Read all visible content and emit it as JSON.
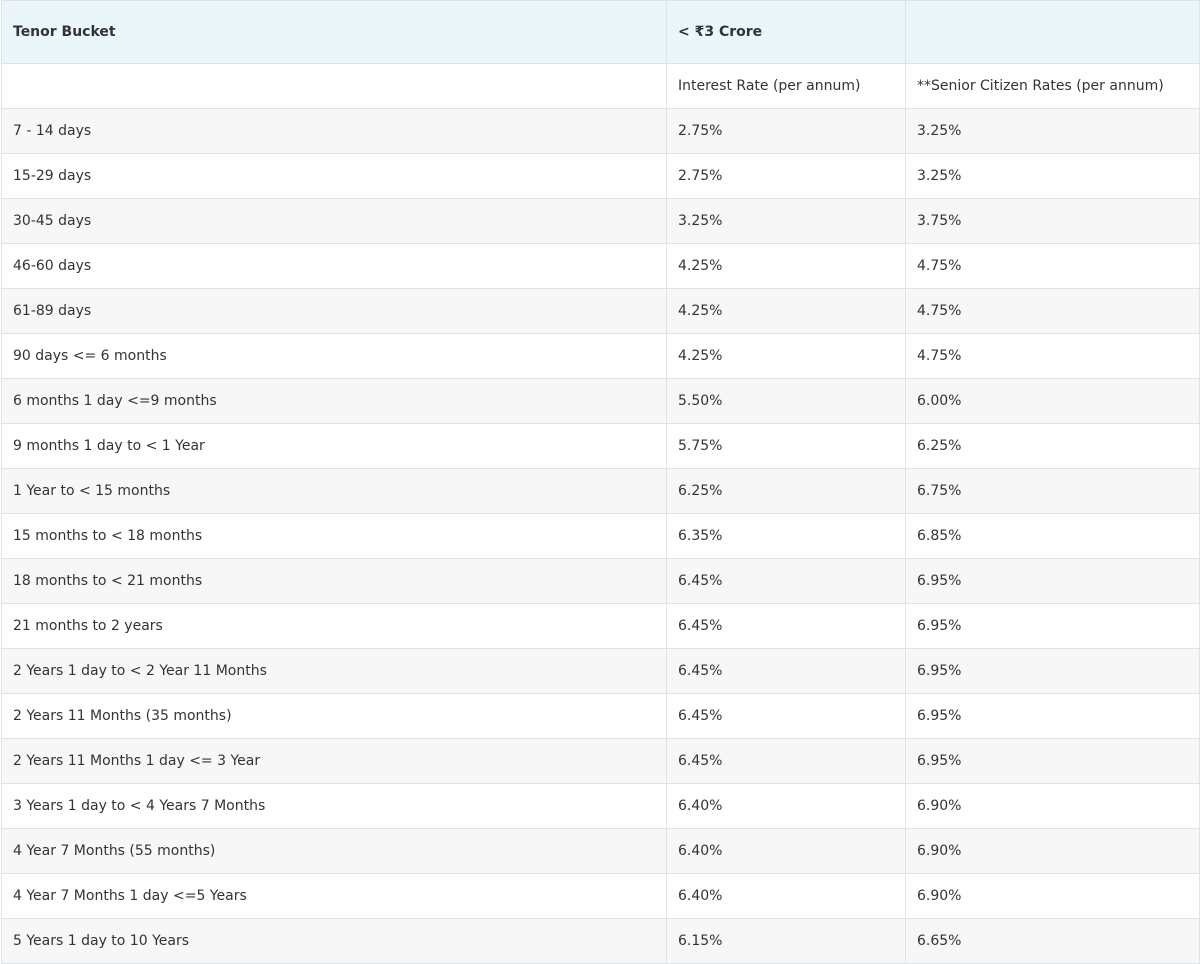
{
  "table": {
    "header": {
      "tenor_bucket": "Tenor Bucket",
      "amount_group": "< ₹3 Crore",
      "empty": ""
    },
    "subheader": {
      "empty": "",
      "interest_rate": "Interest Rate (per annum)",
      "senior_citizen_rate": "**Senior Citizen Rates (per annum)"
    },
    "rows": [
      {
        "tenor": "7 - 14 days",
        "rate": "2.75%",
        "senior": "3.25%"
      },
      {
        "tenor": "15-29 days",
        "rate": "2.75%",
        "senior": "3.25%"
      },
      {
        "tenor": "30-45 days",
        "rate": "3.25%",
        "senior": "3.75%"
      },
      {
        "tenor": "46-60 days",
        "rate": "4.25%",
        "senior": "4.75%"
      },
      {
        "tenor": "61-89 days",
        "rate": "4.25%",
        "senior": "4.75%"
      },
      {
        "tenor": "90 days <= 6 months",
        "rate": "4.25%",
        "senior": "4.75%"
      },
      {
        "tenor": "6 months 1 day <=9 months",
        "rate": "5.50%",
        "senior": "6.00%"
      },
      {
        "tenor": "9 months 1 day to < 1 Year",
        "rate": "5.75%",
        "senior": "6.25%"
      },
      {
        "tenor": "1 Year to < 15 months",
        "rate": "6.25%",
        "senior": "6.75%"
      },
      {
        "tenor": "15 months to < 18 months",
        "rate": "6.35%",
        "senior": "6.85%"
      },
      {
        "tenor": "18 months to < 21 months",
        "rate": "6.45%",
        "senior": "6.95%"
      },
      {
        "tenor": "21 months to 2 years",
        "rate": "6.45%",
        "senior": "6.95%"
      },
      {
        "tenor": "2 Years 1 day to < 2 Year 11 Months",
        "rate": "6.45%",
        "senior": "6.95%"
      },
      {
        "tenor": "2 Years 11 Months (35 months)",
        "rate": "6.45%",
        "senior": "6.95%"
      },
      {
        "tenor": "2 Years 11 Months 1 day <= 3 Year",
        "rate": "6.45%",
        "senior": "6.95%"
      },
      {
        "tenor": "3 Years 1 day to < 4 Years 7 Months",
        "rate": "6.40%",
        "senior": "6.90%"
      },
      {
        "tenor": "4 Year 7 Months (55 months)",
        "rate": "6.40%",
        "senior": "6.90%"
      },
      {
        "tenor": "4 Year 7 Months 1 day <=5 Years",
        "rate": "6.40%",
        "senior": "6.90%"
      },
      {
        "tenor": "5 Years 1 day to 10 Years",
        "rate": "6.15%",
        "senior": "6.65%"
      }
    ]
  }
}
